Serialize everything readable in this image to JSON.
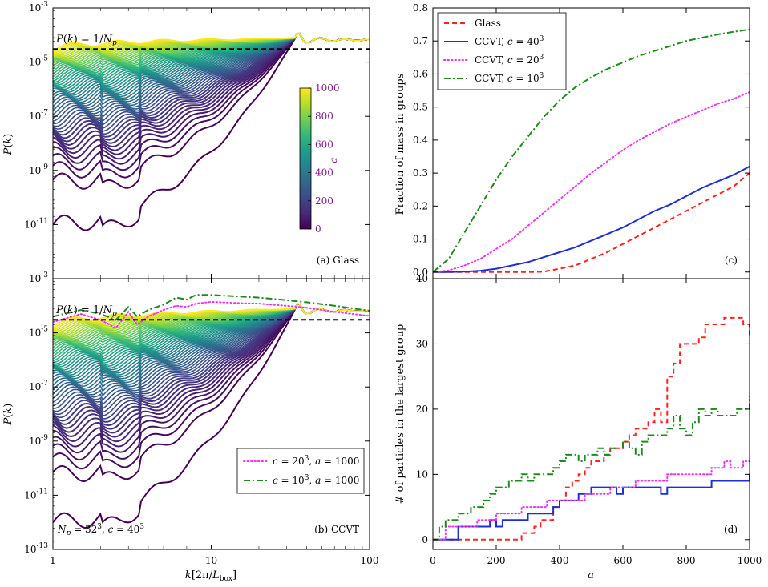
{
  "figure": {
    "colors": {
      "glass": "#ff2222",
      "ccvt40": "#1f2fd8",
      "ccvt20": "#ee33ee",
      "ccvt10": "#1d8a1d",
      "reference": "#000000",
      "colorbar_label": "#7b1f85"
    },
    "viridis_stops": [
      "#440154",
      "#482878",
      "#3e4989",
      "#31688e",
      "#26828e",
      "#1f9e89",
      "#35b779",
      "#6ece58",
      "#b5de2b",
      "#fde725"
    ]
  },
  "chart_data": [
    {
      "id": "panel_a",
      "type": "line",
      "tag": "(a) Glass",
      "ylabel": "P(k)",
      "xlabel": "",
      "xscale": "log",
      "yscale": "log",
      "xlim": [
        1,
        100
      ],
      "ylim": [
        1e-13,
        0.001
      ],
      "yticks": [
        {
          "value": 1e-13,
          "base": "10",
          "exp": "-13"
        },
        {
          "value": 1e-11,
          "base": "10",
          "exp": "-11"
        },
        {
          "value": 1e-09,
          "base": "10",
          "exp": "-9"
        },
        {
          "value": 1e-07,
          "base": "10",
          "exp": "-7"
        },
        {
          "value": 1e-05,
          "base": "10",
          "exp": "-5"
        },
        {
          "value": 0.001,
          "base": "10",
          "exp": "-3"
        }
      ],
      "hide_bottom_ytick": true,
      "reference": {
        "label": "P(k) = 1/N_p",
        "value": 3.05e-05
      },
      "colorbar": {
        "label": "a",
        "ticks": [
          0,
          200,
          400,
          600,
          800,
          1000
        ],
        "range": [
          0,
          1000
        ]
      },
      "spectra_family": {
        "n_curves": 60,
        "lowest_curve_k1": 1e-11,
        "highest_curve_k1": 3e-05,
        "peak_k": 34,
        "peak_value": 0.00011
      }
    },
    {
      "id": "panel_b",
      "type": "line",
      "tag": "(b) CCVT",
      "annotation": "N_p = 32^3, c = 40^3",
      "ylabel": "P(k)",
      "xlabel": "k[2π/L_box]",
      "xscale": "log",
      "yscale": "log",
      "xlim": [
        1,
        100
      ],
      "ylim": [
        1e-13,
        0.001
      ],
      "xticks": [
        {
          "value": 1,
          "label": "1"
        },
        {
          "value": 10,
          "label": "10"
        },
        {
          "value": 100,
          "label": "100"
        }
      ],
      "yticks": [
        {
          "value": 1e-13,
          "base": "10",
          "exp": "-13"
        },
        {
          "value": 1e-11,
          "base": "10",
          "exp": "-11"
        },
        {
          "value": 1e-09,
          "base": "10",
          "exp": "-9"
        },
        {
          "value": 1e-07,
          "base": "10",
          "exp": "-7"
        },
        {
          "value": 1e-05,
          "base": "10",
          "exp": "-5"
        },
        {
          "value": 0.001,
          "base": "10",
          "exp": "-3"
        }
      ],
      "reference": {
        "label": "P(k) = 1/N_p",
        "value": 3.05e-05
      },
      "legend": [
        {
          "label": "c = 20^3, a = 1000",
          "style": "dotted",
          "color_key": "ccvt20"
        },
        {
          "label": "c = 10^3, a = 1000",
          "style": "dashdot",
          "color_key": "ccvt10"
        }
      ],
      "series": [
        {
          "name": "c = 20^3, a = 1000",
          "k": [
            1,
            1.5,
            2,
            2.5,
            3,
            3.4,
            4,
            5,
            6,
            7,
            8,
            10,
            15,
            20,
            30,
            40,
            60,
            100
          ],
          "values": [
            2.5e-05,
            5e-05,
            3e-05,
            1.5e-05,
            6e-05,
            2e-05,
            4e-05,
            7e-05,
            0.0001,
            9e-05,
            0.00012,
            0.00014,
            0.000125,
            0.00012,
            0.0001,
            8.5e-05,
            6e-05,
            4.2e-05
          ]
        },
        {
          "name": "c = 10^3, a = 1000",
          "k": [
            1,
            1.5,
            2,
            2.5,
            3,
            3.4,
            4,
            5,
            6,
            7,
            8,
            10,
            15,
            20,
            30,
            40,
            60,
            100
          ],
          "values": [
            4e-05,
            7e-05,
            5e-05,
            3e-05,
            9e-05,
            4e-05,
            7e-05,
            0.00011,
            0.0002,
            0.00017,
            0.00025,
            0.00025,
            0.00022,
            0.0002,
            0.00016,
            0.000135,
            0.0001,
            6.5e-05
          ]
        }
      ],
      "spectra_family": {
        "n_curves": 60,
        "lowest_curve_k1": 1e-12,
        "highest_curve_k1": 1.8e-05,
        "peak_k": 34,
        "peak_value": 0.00011
      }
    },
    {
      "id": "panel_c",
      "type": "line",
      "tag": "(c)",
      "ylabel": "Fraction of mass in groups",
      "xlabel": "",
      "xlim": [
        0,
        1000
      ],
      "ylim": [
        -0.02,
        0.8
      ],
      "yticks": [
        0.0,
        0.1,
        0.2,
        0.3,
        0.4,
        0.5,
        0.6,
        0.7,
        0.8
      ],
      "ytick_labels": [
        "0.0",
        "0.1",
        "0.2",
        "0.3",
        "0.4",
        "0.5",
        "0.6",
        "0.7",
        "0.8"
      ],
      "x": [
        0,
        50,
        100,
        150,
        200,
        250,
        300,
        350,
        400,
        450,
        500,
        550,
        600,
        650,
        700,
        750,
        800,
        850,
        900,
        950,
        1000
      ],
      "legend": [
        {
          "label": "Glass",
          "style": "dashed",
          "color_key": "glass"
        },
        {
          "label": "CCVT, c = 40^3",
          "style": "solid",
          "color_key": "ccvt40"
        },
        {
          "label": "CCVT, c = 20^3",
          "style": "dotted",
          "color_key": "ccvt20"
        },
        {
          "label": "CCVT, c = 10^3",
          "style": "dashdot",
          "color_key": "ccvt10"
        }
      ],
      "series": [
        {
          "name": "Glass",
          "values": [
            0,
            0,
            0,
            0,
            0,
            0,
            0,
            0.001,
            0.01,
            0.02,
            0.04,
            0.06,
            0.085,
            0.11,
            0.135,
            0.16,
            0.185,
            0.21,
            0.235,
            0.26,
            0.3
          ]
        },
        {
          "name": "CCVT, c = 40^3",
          "values": [
            0,
            0,
            0.001,
            0.004,
            0.01,
            0.02,
            0.03,
            0.045,
            0.06,
            0.075,
            0.095,
            0.115,
            0.135,
            0.16,
            0.185,
            0.205,
            0.23,
            0.255,
            0.275,
            0.295,
            0.32
          ]
        },
        {
          "name": "CCVT, c = 20^3",
          "values": [
            0,
            0.005,
            0.02,
            0.04,
            0.07,
            0.1,
            0.14,
            0.18,
            0.22,
            0.26,
            0.3,
            0.335,
            0.37,
            0.4,
            0.425,
            0.45,
            0.47,
            0.49,
            0.51,
            0.525,
            0.545
          ]
        },
        {
          "name": "CCVT, c = 10^3",
          "values": [
            0,
            0.04,
            0.12,
            0.2,
            0.28,
            0.35,
            0.41,
            0.47,
            0.52,
            0.56,
            0.59,
            0.615,
            0.635,
            0.655,
            0.67,
            0.685,
            0.7,
            0.71,
            0.72,
            0.728,
            0.735
          ]
        }
      ]
    },
    {
      "id": "panel_d",
      "type": "line",
      "tag": "(d)",
      "ylabel": "# of particles in the largest group",
      "xlabel": "a",
      "xlim": [
        0,
        1000
      ],
      "ylim": [
        -1.5,
        40
      ],
      "xticks": [
        0,
        200,
        400,
        600,
        800,
        1000
      ],
      "xtick_labels": [
        "0",
        "200",
        "400",
        "600",
        "800",
        "1000"
      ],
      "yticks": [
        0,
        10,
        20,
        30,
        40
      ],
      "ytick_labels": [
        "0",
        "10",
        "20",
        "30",
        "40"
      ],
      "series": [
        {
          "name": "Glass",
          "x": [
            0,
            260,
            280,
            320,
            340,
            360,
            380,
            400,
            420,
            440,
            460,
            480,
            500,
            540,
            560,
            580,
            600,
            620,
            640,
            660,
            680,
            700,
            720,
            740,
            760,
            780,
            800,
            820,
            840,
            860,
            880,
            900,
            920,
            940,
            960,
            980,
            1000
          ],
          "values": [
            0,
            0,
            1,
            2,
            3,
            3,
            5,
            6,
            8,
            9,
            10,
            11,
            12,
            13,
            14,
            14,
            15,
            16,
            17,
            17,
            18,
            20,
            18,
            25,
            27,
            30,
            30,
            30,
            31,
            33,
            33,
            33,
            34,
            34,
            34,
            33,
            31
          ]
        },
        {
          "name": "CCVT, c = 40^3",
          "x": [
            0,
            60,
            80,
            120,
            160,
            180,
            200,
            220,
            260,
            280,
            300,
            320,
            360,
            380,
            400,
            420,
            440,
            460,
            480,
            500,
            540,
            560,
            580,
            600,
            640,
            680,
            700,
            720,
            740,
            780,
            820,
            840,
            860,
            880,
            900,
            940,
            960,
            980,
            1000
          ],
          "values": [
            0,
            0,
            2,
            2,
            2,
            3,
            2,
            3,
            3,
            3,
            4,
            4,
            4,
            5,
            6,
            6,
            6,
            7,
            7,
            8,
            8,
            8,
            7,
            8,
            8,
            8,
            8,
            7,
            8,
            8,
            8,
            8,
            8,
            9,
            9,
            9,
            9,
            9,
            10
          ]
        },
        {
          "name": "CCVT, c = 20^3",
          "x": [
            0,
            40,
            80,
            120,
            140,
            160,
            200,
            240,
            260,
            280,
            320,
            360,
            400,
            440,
            480,
            500,
            540,
            560,
            600,
            640,
            680,
            700,
            740,
            780,
            800,
            840,
            880,
            900,
            920,
            940,
            960,
            980,
            1000
          ],
          "values": [
            0,
            2,
            2,
            2,
            3,
            3,
            4,
            4,
            4,
            5,
            5,
            6,
            6,
            6,
            7,
            7,
            7,
            8,
            8,
            9,
            9,
            9,
            10,
            10,
            10,
            10,
            11,
            11,
            12,
            11,
            11,
            12,
            12
          ]
        },
        {
          "name": "CCVT, c = 10^3",
          "x": [
            0,
            20,
            40,
            60,
            80,
            100,
            120,
            140,
            160,
            180,
            200,
            220,
            240,
            260,
            280,
            300,
            320,
            340,
            360,
            380,
            400,
            420,
            440,
            460,
            480,
            500,
            520,
            540,
            560,
            580,
            600,
            620,
            640,
            660,
            680,
            700,
            720,
            740,
            760,
            780,
            800,
            820,
            840,
            860,
            880,
            900,
            920,
            940,
            960,
            980,
            1000
          ],
          "values": [
            0,
            2,
            3,
            3,
            4,
            4,
            5,
            5,
            6,
            7,
            8,
            8,
            9,
            9,
            10,
            9,
            10,
            10,
            10,
            11,
            12,
            13,
            13,
            12,
            13,
            13,
            14,
            13,
            14,
            14,
            15,
            14,
            13,
            15,
            16,
            16,
            16,
            17,
            19,
            17,
            16,
            18,
            20,
            19,
            20,
            19,
            19,
            19,
            20,
            20,
            22
          ]
        }
      ]
    }
  ]
}
